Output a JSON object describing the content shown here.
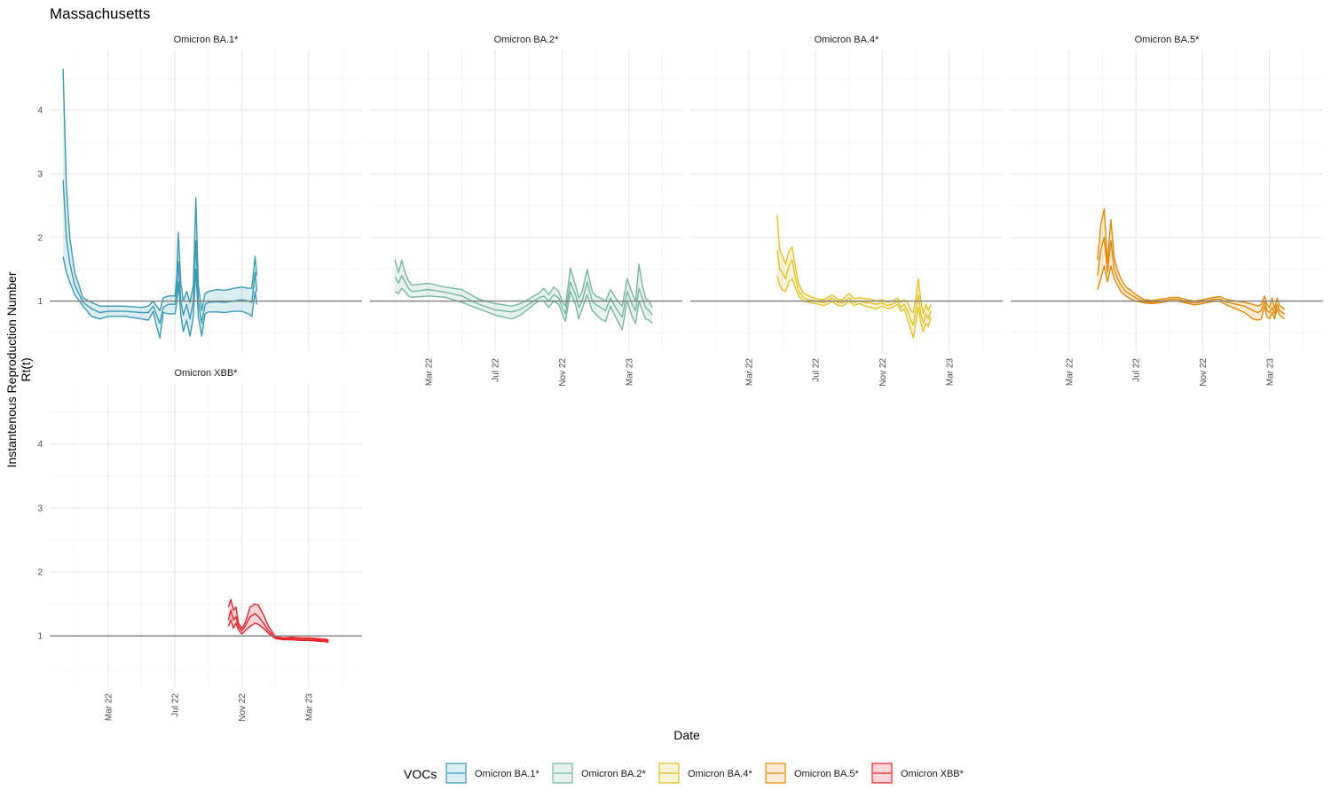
{
  "chart_data": {
    "type": "line",
    "title": "Massachusetts",
    "xlabel": "Date",
    "ylabel_lines": [
      "Instantenous Reproduction Number",
      "Rt(t)"
    ],
    "ylim": [
      0.2,
      4.95
    ],
    "yticks": [
      1,
      2,
      3,
      4
    ],
    "reference_line": 1,
    "x_unit": "months since Jan 2022",
    "xlim": [
      -1.5,
      17.2
    ],
    "xticks": [
      {
        "label": "Mar 22",
        "value": 2
      },
      {
        "label": "Jul 22",
        "value": 6
      },
      {
        "label": "Nov 22",
        "value": 10
      },
      {
        "label": "Mar 23",
        "value": 14
      }
    ],
    "legend": {
      "title": "VOCs",
      "position": "bottom"
    },
    "panels": [
      {
        "name": "Omicron BA.1*",
        "color": "#3b9ab2",
        "x": [
          -0.7,
          -0.5,
          -0.3,
          0.0,
          0.5,
          1.0,
          1.5,
          2.0,
          3.0,
          4.0,
          4.4,
          4.7,
          4.9,
          5.1,
          5.3,
          5.6,
          5.8,
          6.0,
          6.1,
          6.2,
          6.35,
          6.5,
          6.7,
          6.9,
          7.1,
          7.25,
          7.4,
          7.6,
          7.8,
          8.0,
          8.5,
          9.0,
          9.5,
          10.0,
          10.4,
          10.6,
          10.8,
          10.9
        ],
        "mid": [
          2.9,
          2.0,
          1.6,
          1.25,
          0.98,
          0.88,
          0.82,
          0.84,
          0.84,
          0.82,
          0.82,
          0.92,
          0.78,
          0.65,
          0.9,
          0.95,
          0.95,
          0.95,
          1.15,
          1.62,
          1.0,
          0.78,
          0.95,
          0.72,
          1.0,
          1.95,
          1.0,
          0.65,
          0.95,
          0.98,
          0.99,
          0.98,
          1.0,
          1.02,
          1.0,
          0.98,
          1.45,
          1.15
        ],
        "lo": [
          1.7,
          1.45,
          1.3,
          1.1,
          0.92,
          0.76,
          0.72,
          0.76,
          0.76,
          0.72,
          0.7,
          0.84,
          0.6,
          0.42,
          0.82,
          0.8,
          0.8,
          0.8,
          0.95,
          1.3,
          0.78,
          0.52,
          0.7,
          0.45,
          0.75,
          1.5,
          0.75,
          0.45,
          0.8,
          0.83,
          0.83,
          0.82,
          0.84,
          0.84,
          0.8,
          0.76,
          1.15,
          0.95
        ],
        "hi": [
          4.65,
          2.8,
          2.0,
          1.45,
          1.05,
          0.98,
          0.92,
          0.92,
          0.92,
          0.9,
          0.92,
          1.0,
          0.92,
          0.85,
          1.05,
          1.08,
          1.08,
          1.08,
          1.38,
          2.08,
          1.28,
          1.0,
          1.15,
          0.98,
          1.25,
          2.62,
          1.25,
          0.85,
          1.12,
          1.15,
          1.18,
          1.17,
          1.2,
          1.22,
          1.2,
          1.2,
          1.7,
          1.4
        ]
      },
      {
        "name": "Omicron BA.2*",
        "color": "#78b7a0",
        "x": [
          0.0,
          0.2,
          0.4,
          0.6,
          0.8,
          1.0,
          2.0,
          3.0,
          4.0,
          5.0,
          6.0,
          7.0,
          7.5,
          8.0,
          8.3,
          8.6,
          8.9,
          9.2,
          9.5,
          9.8,
          10.0,
          10.2,
          10.5,
          10.8,
          11.0,
          11.2,
          11.5,
          11.8,
          12.0,
          12.3,
          12.6,
          12.9,
          13.2,
          13.6,
          13.9,
          14.2,
          14.4,
          14.6,
          14.8,
          15.0,
          15.2,
          15.4
        ],
        "mid": [
          1.38,
          1.28,
          1.4,
          1.3,
          1.2,
          1.15,
          1.18,
          1.14,
          1.08,
          0.95,
          0.86,
          0.83,
          0.87,
          0.95,
          1.0,
          1.05,
          1.08,
          1.0,
          1.1,
          1.05,
          0.9,
          0.8,
          1.3,
          1.1,
          0.9,
          1.0,
          1.3,
          1.0,
          0.95,
          0.9,
          0.85,
          1.05,
          0.9,
          0.75,
          1.15,
          0.95,
          0.85,
          1.2,
          1.05,
          0.9,
          0.85,
          0.78
        ],
        "lo": [
          1.15,
          1.12,
          1.2,
          1.15,
          1.08,
          1.06,
          1.08,
          1.06,
          0.98,
          0.88,
          0.78,
          0.72,
          0.78,
          0.88,
          0.95,
          1.0,
          1.0,
          0.9,
          1.0,
          0.95,
          0.8,
          0.68,
          1.15,
          0.95,
          0.72,
          0.88,
          1.1,
          0.85,
          0.8,
          0.72,
          0.68,
          0.92,
          0.75,
          0.55,
          1.0,
          0.75,
          0.65,
          1.0,
          0.85,
          0.72,
          0.7,
          0.65
        ],
        "hi": [
          1.65,
          1.45,
          1.64,
          1.45,
          1.32,
          1.25,
          1.28,
          1.22,
          1.18,
          1.03,
          0.96,
          0.92,
          0.96,
          1.03,
          1.08,
          1.12,
          1.2,
          1.1,
          1.22,
          1.15,
          1.0,
          0.92,
          1.52,
          1.25,
          1.05,
          1.15,
          1.5,
          1.15,
          1.08,
          1.05,
          1.0,
          1.18,
          1.05,
          0.92,
          1.35,
          1.12,
          1.0,
          1.58,
          1.25,
          1.05,
          1.0,
          0.9
        ]
      },
      {
        "name": "Omicron BA.4*",
        "color": "#e6c227",
        "x": [
          3.7,
          3.85,
          4.0,
          4.2,
          4.4,
          4.6,
          4.8,
          5.0,
          5.3,
          5.6,
          6.0,
          6.5,
          7.0,
          7.3,
          7.6,
          8.0,
          8.3,
          8.6,
          9.0,
          9.3,
          9.6,
          10.0,
          10.3,
          10.6,
          10.9,
          11.1,
          11.3,
          11.5,
          11.7,
          11.85,
          12.0,
          12.15,
          12.3,
          12.45,
          12.6,
          12.75,
          12.9
        ],
        "mid": [
          1.8,
          1.5,
          1.45,
          1.35,
          1.55,
          1.65,
          1.35,
          1.15,
          1.05,
          1.02,
          1.0,
          0.97,
          1.05,
          0.98,
          0.97,
          1.05,
          0.98,
          1.0,
          0.98,
          0.97,
          0.95,
          0.97,
          0.93,
          0.95,
          1.0,
          0.9,
          0.95,
          0.85,
          0.7,
          0.62,
          0.85,
          1.1,
          0.8,
          0.65,
          0.8,
          0.72,
          0.85
        ],
        "lo": [
          1.4,
          1.25,
          1.18,
          1.15,
          1.3,
          1.35,
          1.2,
          1.07,
          1.0,
          0.98,
          0.96,
          0.93,
          0.99,
          0.94,
          0.92,
          1.0,
          0.93,
          0.96,
          0.92,
          0.9,
          0.88,
          0.92,
          0.88,
          0.9,
          0.95,
          0.84,
          0.88,
          0.72,
          0.55,
          0.42,
          0.65,
          0.9,
          0.65,
          0.52,
          0.65,
          0.6,
          0.75
        ],
        "hi": [
          2.35,
          1.8,
          1.72,
          1.58,
          1.78,
          1.85,
          1.52,
          1.25,
          1.12,
          1.08,
          1.04,
          1.02,
          1.1,
          1.03,
          1.02,
          1.12,
          1.04,
          1.05,
          1.04,
          1.03,
          1.0,
          1.02,
          0.98,
          1.0,
          1.05,
          0.98,
          1.02,
          0.98,
          0.85,
          0.82,
          1.05,
          1.35,
          1.0,
          0.8,
          0.95,
          0.85,
          0.95
        ]
      },
      {
        "name": "Omicron BA.5*",
        "color": "#e1890a",
        "x": [
          3.7,
          3.9,
          4.1,
          4.3,
          4.5,
          4.7,
          4.9,
          5.1,
          5.4,
          5.7,
          6.0,
          6.5,
          7.0,
          7.5,
          8.0,
          8.5,
          9.0,
          9.5,
          10.0,
          10.5,
          11.0,
          11.5,
          12.0,
          12.5,
          13.0,
          13.3,
          13.5,
          13.7,
          13.85,
          14.0,
          14.15,
          14.3,
          14.45,
          14.6,
          14.75,
          14.9
        ],
        "mid": [
          1.4,
          1.8,
          2.0,
          1.45,
          1.95,
          1.5,
          1.35,
          1.25,
          1.15,
          1.1,
          1.05,
          0.99,
          0.98,
          1.0,
          1.02,
          1.03,
          0.99,
          0.97,
          0.99,
          1.02,
          1.03,
          0.98,
          0.95,
          0.92,
          0.85,
          0.82,
          0.85,
          1.0,
          0.85,
          0.82,
          0.9,
          0.8,
          0.95,
          0.85,
          0.82,
          0.8
        ],
        "lo": [
          1.18,
          1.35,
          1.55,
          1.3,
          1.55,
          1.35,
          1.25,
          1.15,
          1.08,
          1.03,
          1.0,
          0.97,
          0.96,
          0.98,
          1.0,
          1.0,
          0.97,
          0.94,
          0.96,
          0.99,
          1.0,
          0.93,
          0.88,
          0.82,
          0.72,
          0.7,
          0.72,
          0.92,
          0.75,
          0.72,
          0.82,
          0.72,
          0.88,
          0.78,
          0.75,
          0.72
        ],
        "hi": [
          1.65,
          2.2,
          2.45,
          1.6,
          2.28,
          1.68,
          1.48,
          1.35,
          1.22,
          1.17,
          1.1,
          1.02,
          1.01,
          1.03,
          1.05,
          1.06,
          1.02,
          1.0,
          1.02,
          1.05,
          1.07,
          1.02,
          1.0,
          0.98,
          0.95,
          0.92,
          0.95,
          1.08,
          0.95,
          0.9,
          1.05,
          0.88,
          1.05,
          0.93,
          0.9,
          0.87
        ]
      },
      {
        "name": "Omicron XBB*",
        "color": "#e8212a",
        "x": [
          9.2,
          9.35,
          9.5,
          9.65,
          9.8,
          10.0,
          10.2,
          10.5,
          10.8,
          11.0,
          11.3,
          11.6,
          12.0,
          12.5,
          13.0,
          13.5,
          14.0,
          14.5,
          15.0,
          15.2
        ],
        "mid": [
          1.25,
          1.4,
          1.25,
          1.3,
          1.15,
          1.08,
          1.15,
          1.3,
          1.35,
          1.3,
          1.2,
          1.08,
          0.97,
          0.95,
          0.96,
          0.95,
          0.95,
          0.94,
          0.93,
          0.92
        ],
        "lo": [
          1.15,
          1.25,
          1.12,
          1.2,
          1.1,
          1.03,
          1.08,
          1.15,
          1.2,
          1.18,
          1.12,
          1.04,
          0.96,
          0.94,
          0.94,
          0.93,
          0.93,
          0.92,
          0.91,
          0.9
        ],
        "hi": [
          1.45,
          1.57,
          1.4,
          1.45,
          1.2,
          1.12,
          1.2,
          1.45,
          1.5,
          1.48,
          1.33,
          1.15,
          0.99,
          0.97,
          0.98,
          0.97,
          0.97,
          0.96,
          0.95,
          0.94
        ]
      }
    ]
  }
}
